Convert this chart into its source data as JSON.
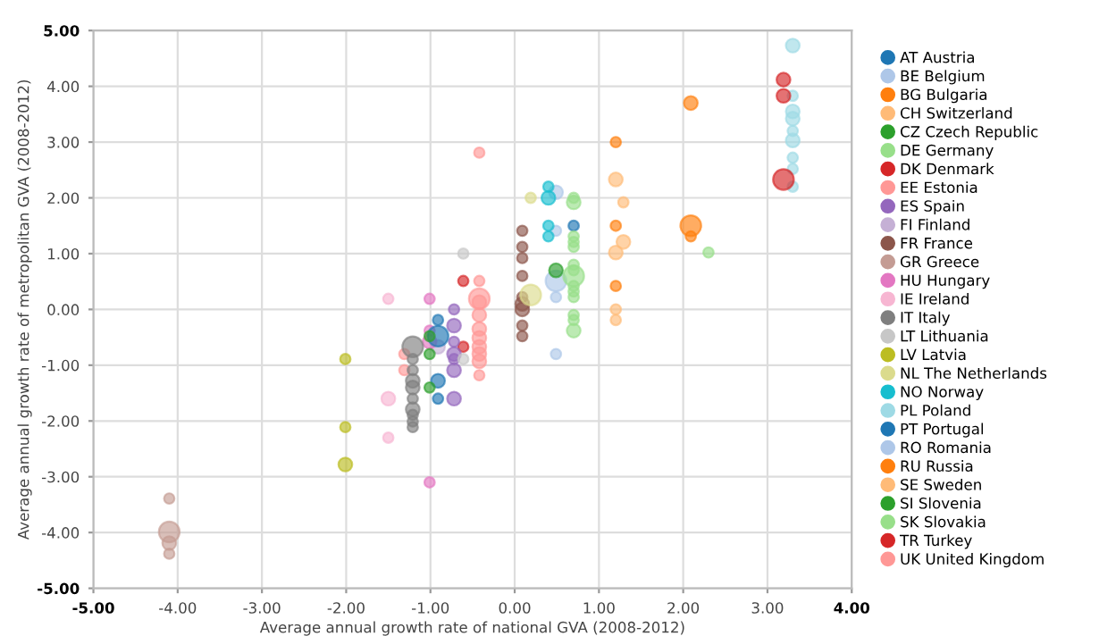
{
  "chart_data": {
    "type": "bubble",
    "xlabel": "Average annual growth rate of national GVA (2008-2012)",
    "ylabel": "Average annual growth rate of metropolitan GVA (2008-2012)",
    "xlim": [
      -5,
      4
    ],
    "ylim": [
      -5,
      5
    ],
    "xticks": [
      {
        "value": -5,
        "label": "-5.00"
      },
      {
        "value": -4,
        "label": "-4.00"
      },
      {
        "value": -3,
        "label": "-3.00"
      },
      {
        "value": -2,
        "label": "-2.00"
      },
      {
        "value": -1,
        "label": "-1.00"
      },
      {
        "value": 0,
        "label": "0.00"
      },
      {
        "value": 1,
        "label": "1.00"
      },
      {
        "value": 2,
        "label": "2.00"
      },
      {
        "value": 3,
        "label": "3.00"
      },
      {
        "value": 4,
        "label": "4.00"
      }
    ],
    "yticks": [
      {
        "value": -5,
        "label": "-5.00"
      },
      {
        "value": -4,
        "label": "-4.00"
      },
      {
        "value": -3,
        "label": "-3.00"
      },
      {
        "value": -2,
        "label": "-2.00"
      },
      {
        "value": -1,
        "label": "-1.00"
      },
      {
        "value": 0,
        "label": "0.00"
      },
      {
        "value": 1,
        "label": "1.00"
      },
      {
        "value": 2,
        "label": "2.00"
      },
      {
        "value": 3,
        "label": "3.00"
      },
      {
        "value": 4,
        "label": "4.00"
      },
      {
        "value": 5,
        "label": "5.00"
      }
    ],
    "grid": true,
    "legend": "right",
    "marker": "circle",
    "series": [
      {
        "name": "AT Austria",
        "color": "#1f77b4",
        "x": [
          0.7
        ],
        "values": [
          1.5
        ],
        "sizes": [
          0.25
        ]
      },
      {
        "name": "BE Belgium",
        "color": "#aec7e8",
        "x": [
          0.49,
          0.49,
          0.49,
          0.49
        ],
        "values": [
          2.1,
          1.41,
          0.51,
          0.22
        ],
        "sizes": [
          0.44,
          0.25,
          1,
          0.25
        ]
      },
      {
        "name": "BG Bulgaria",
        "color": "#ff7f0e",
        "x": [
          1.2,
          1.2,
          1.2
        ],
        "values": [
          3.0,
          1.5,
          0.42
        ],
        "sizes": [
          0.25,
          0.25,
          0.25
        ]
      },
      {
        "name": "CH Switzerland",
        "color": "#ffbb78",
        "x": [
          1.2,
          1.2,
          1.2,
          1.2
        ],
        "values": [
          2.33,
          1.02,
          0.0,
          -0.19
        ],
        "sizes": [
          0.44,
          0.44,
          0.25,
          0.25
        ]
      },
      {
        "name": "CZ Czech Republic",
        "color": "#2ca02c",
        "x": [
          0.49
        ],
        "values": [
          0.7
        ],
        "sizes": [
          0.44
        ]
      },
      {
        "name": "DE Germany",
        "color": "#98df8a",
        "x": [
          0.7,
          0.7,
          0.7,
          0.7,
          0.7,
          0.7,
          0.7,
          0.7,
          0.7,
          0.7,
          0.7,
          0.7,
          0.7,
          0.7
        ],
        "values": [
          2.0,
          1.92,
          1.31,
          1.21,
          1.12,
          0.8,
          0.7,
          0.6,
          0.42,
          0.32,
          0.22,
          -0.1,
          -0.19,
          -0.38
        ],
        "sizes": [
          0.25,
          0.44,
          0.25,
          0.25,
          0.25,
          0.25,
          0.25,
          1,
          0.25,
          0.25,
          0.25,
          0.25,
          0.25,
          0.44
        ]
      },
      {
        "name": "DK Denmark",
        "color": "#d62728",
        "x": [
          -0.61,
          -0.61
        ],
        "values": [
          0.51,
          -0.67
        ],
        "sizes": [
          0.25,
          0.25
        ]
      },
      {
        "name": "EE Estonia",
        "color": "#ff9896",
        "x": [
          -1.31,
          -1.31
        ],
        "values": [
          -0.8,
          -1.09
        ],
        "sizes": [
          0.25,
          0.25
        ]
      },
      {
        "name": "ES Spain",
        "color": "#9467bd",
        "x": [
          -0.72,
          -0.72,
          -0.72,
          -0.72,
          -0.72,
          -0.72,
          -0.72
        ],
        "values": [
          0.0,
          -0.29,
          -0.58,
          -0.8,
          -0.89,
          -1.09,
          -1.6
        ],
        "sizes": [
          0.25,
          0.44,
          0.25,
          0.44,
          0.25,
          0.44,
          0.44
        ]
      },
      {
        "name": "FI Finland",
        "color": "#c5b0d5",
        "x": [
          -0.91
        ],
        "values": [
          -0.67
        ],
        "sizes": [
          0.44
        ]
      },
      {
        "name": "FR France",
        "color": "#8c564b",
        "x": [
          0.09,
          0.09,
          0.09,
          0.09,
          0.09,
          0.09,
          0.09,
          0.09,
          0.09
        ],
        "values": [
          1.41,
          1.12,
          0.92,
          0.6,
          0.22,
          0.1,
          0.0,
          -0.29,
          -0.48
        ],
        "sizes": [
          0.25,
          0.25,
          0.25,
          0.25,
          0.25,
          0.44,
          0.44,
          0.25,
          0.25
        ]
      },
      {
        "name": "GR Greece",
        "color": "#c49c94",
        "x": [
          -4.1,
          -4.1,
          -4.1,
          -4.1
        ],
        "values": [
          -3.39,
          -3.99,
          -4.19,
          -4.38
        ],
        "sizes": [
          0.25,
          1,
          0.44,
          0.25
        ]
      },
      {
        "name": "HU Hungary",
        "color": "#e377c2",
        "x": [
          -1.01,
          -1.01,
          -1.01,
          -1.01
        ],
        "values": [
          0.19,
          -0.38,
          -0.58,
          -3.1
        ],
        "sizes": [
          0.25,
          0.25,
          0.44,
          0.25
        ]
      },
      {
        "name": "IE Ireland",
        "color": "#f7b6d2",
        "x": [
          -1.5,
          -1.5,
          -1.5
        ],
        "values": [
          0.19,
          -1.6,
          -2.3
        ],
        "sizes": [
          0.25,
          0.44,
          0.25
        ]
      },
      {
        "name": "IT Italy",
        "color": "#7f7f7f",
        "x": [
          -1.21,
          -1.21,
          -1.21,
          -1.21,
          -1.21,
          -1.21,
          -1.21,
          -1.21,
          -1.21,
          -1.21
        ],
        "values": [
          -0.67,
          -0.89,
          -1.09,
          -1.28,
          -1.4,
          -1.6,
          -1.79,
          -1.89,
          -2.01,
          -2.11
        ],
        "sizes": [
          1,
          0.25,
          0.25,
          0.44,
          0.44,
          0.25,
          0.44,
          0.25,
          0.25,
          0.25
        ]
      },
      {
        "name": "LT Lithuania",
        "color": "#c7c7c7",
        "x": [
          -0.61,
          -0.61
        ],
        "values": [
          1.0,
          -0.89
        ],
        "sizes": [
          0.25,
          0.25
        ]
      },
      {
        "name": "LV Latvia",
        "color": "#bcbd22",
        "x": [
          -2.01,
          -2.01,
          -2.01
        ],
        "values": [
          -0.89,
          -2.11,
          -2.78
        ],
        "sizes": [
          0.25,
          0.25,
          0.44
        ]
      },
      {
        "name": "NL The Netherlands",
        "color": "#dbdb8d",
        "x": [
          0.19,
          0.19
        ],
        "values": [
          2.0,
          0.26
        ],
        "sizes": [
          0.25,
          1
        ]
      },
      {
        "name": "NO Norway",
        "color": "#17becf",
        "x": [
          0.4,
          0.4,
          0.4,
          0.4
        ],
        "values": [
          2.2,
          2.0,
          1.5,
          1.31
        ],
        "sizes": [
          0.25,
          0.44,
          0.25,
          0.25
        ]
      },
      {
        "name": "PL Poland",
        "color": "#9edae5",
        "x": [
          3.3,
          3.3,
          3.3,
          3.3,
          3.3,
          3.3,
          3.3,
          3.3,
          3.3
        ],
        "values": [
          4.73,
          3.83,
          3.55,
          3.42,
          3.2,
          3.03,
          2.72,
          2.52,
          2.2
        ],
        "sizes": [
          0.44,
          0.25,
          0.44,
          0.44,
          0.25,
          0.44,
          0.25,
          0.25,
          0.25
        ]
      },
      {
        "name": "PT Portugal",
        "color": "#1f77b4",
        "x": [
          -0.91,
          -0.91,
          -0.91,
          -0.91
        ],
        "values": [
          -0.19,
          -0.48,
          -1.28,
          -1.6
        ],
        "sizes": [
          0.25,
          1,
          0.44,
          0.25
        ]
      },
      {
        "name": "RO Romania",
        "color": "#aec7e8",
        "x": [
          0.49
        ],
        "values": [
          -0.8
        ],
        "sizes": [
          0.25
        ]
      },
      {
        "name": "RU Russia",
        "color": "#ff7f0e",
        "x": [
          2.09,
          2.09,
          2.09
        ],
        "values": [
          3.7,
          1.5,
          1.31
        ],
        "sizes": [
          0.44,
          1,
          0.25
        ]
      },
      {
        "name": "SE Sweden",
        "color": "#ffbb78",
        "x": [
          1.29,
          1.29
        ],
        "values": [
          1.92,
          1.21
        ],
        "sizes": [
          0.25,
          0.44
        ]
      },
      {
        "name": "SI Slovenia",
        "color": "#2ca02c",
        "x": [
          -1.01,
          -1.01,
          -1.01
        ],
        "values": [
          -0.48,
          -0.8,
          -1.4
        ],
        "sizes": [
          0.25,
          0.25,
          0.25
        ]
      },
      {
        "name": "SK Slovakia",
        "color": "#98df8a",
        "x": [
          2.3
        ],
        "values": [
          1.02
        ],
        "sizes": [
          0.25
        ]
      },
      {
        "name": "TR Turkey",
        "color": "#d62728",
        "x": [
          3.19,
          3.19,
          3.19
        ],
        "values": [
          4.12,
          3.83,
          2.33
        ],
        "sizes": [
          0.44,
          0.44,
          1
        ]
      },
      {
        "name": "UK United Kingdom",
        "color": "#ff9896",
        "x": [
          -0.42,
          -0.42,
          -0.42,
          -0.42,
          -0.42,
          -0.42,
          -0.42,
          -0.42,
          -0.42,
          -0.42,
          -0.42
        ],
        "values": [
          2.81,
          0.51,
          0.19,
          0.13,
          -0.1,
          -0.35,
          -0.51,
          -0.67,
          -0.8,
          -0.93,
          -1.18
        ],
        "sizes": [
          0.25,
          0.25,
          1,
          0.44,
          0.44,
          0.44,
          0.44,
          0.44,
          0.44,
          0.44,
          0.25
        ]
      }
    ]
  }
}
